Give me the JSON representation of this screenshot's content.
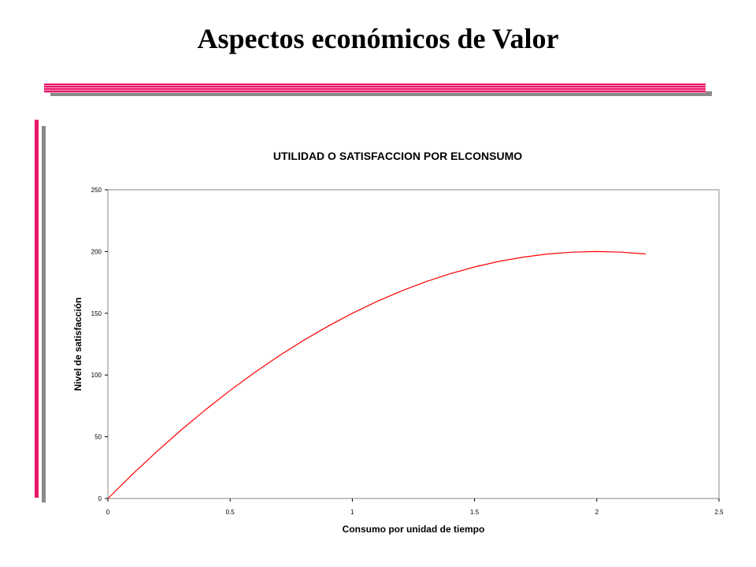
{
  "slide": {
    "title": "Aspectos económicos de Valor",
    "accent_color": "#e8196b",
    "shadow_color": "#8a8a8a"
  },
  "chart_data": {
    "type": "line",
    "title": "UTILIDAD O SATISFACCION POR ELCONSUMO",
    "xlabel": "Consumo por unidad de tiempo",
    "ylabel": "Nivel de satisfacción",
    "xlim": [
      0,
      2.5
    ],
    "ylim": [
      0,
      250
    ],
    "x_ticks": [
      "0",
      "0.5",
      "1",
      "1.5",
      "2",
      "2.5"
    ],
    "y_ticks": [
      "0",
      "50",
      "100",
      "150",
      "200",
      "250"
    ],
    "grid": false,
    "legend": "none",
    "series": [
      {
        "color": "#ff0000",
        "x": [
          0,
          0.1,
          0.2,
          0.3,
          0.4,
          0.5,
          0.6,
          0.7,
          0.8,
          0.9,
          1.0,
          1.1,
          1.2,
          1.3,
          1.4,
          1.5,
          1.6,
          1.7,
          1.8,
          1.9,
          2.0,
          2.1,
          2.2
        ],
        "y": [
          0,
          19.5,
          38,
          55.5,
          72,
          87.5,
          102,
          115.5,
          128,
          139.5,
          150,
          159.5,
          168,
          175.5,
          182,
          187.5,
          192,
          195.5,
          198,
          199.5,
          200,
          199.5,
          198
        ]
      }
    ]
  }
}
